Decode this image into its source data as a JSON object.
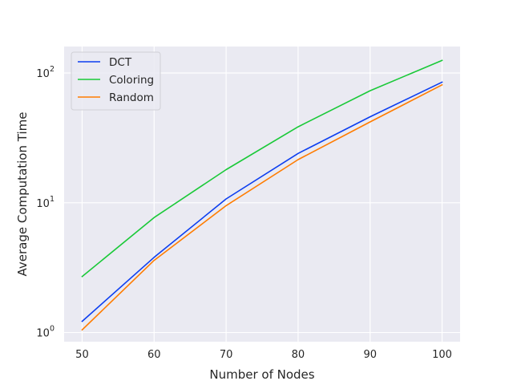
{
  "chart_data": {
    "type": "line",
    "xlabel": "Number of Nodes",
    "ylabel": "Average Computation Time",
    "x": [
      50,
      60,
      70,
      80,
      90,
      100
    ],
    "xlim": [
      47.5,
      102.5
    ],
    "xticks": [
      "50",
      "60",
      "70",
      "80",
      "90",
      "100"
    ],
    "yscale": "log",
    "ylim": [
      0.85,
      160
    ],
    "yticks": [
      {
        "value": 1,
        "base": "10",
        "exp": "0"
      },
      {
        "value": 10,
        "base": "10",
        "exp": "1"
      },
      {
        "value": 100,
        "base": "10",
        "exp": "2"
      }
    ],
    "grid": true,
    "legend_position": "top-left",
    "series": [
      {
        "name": "DCT",
        "color": "#0c3ef0",
        "values": [
          1.22,
          3.8,
          10.7,
          24,
          46,
          85
        ]
      },
      {
        "name": "Coloring",
        "color": "#1ac938",
        "values": [
          2.7,
          7.7,
          18,
          38.5,
          73,
          125
        ]
      },
      {
        "name": "Random",
        "color": "#ff7c00",
        "values": [
          1.05,
          3.6,
          9.5,
          21.5,
          42,
          81
        ]
      }
    ]
  }
}
